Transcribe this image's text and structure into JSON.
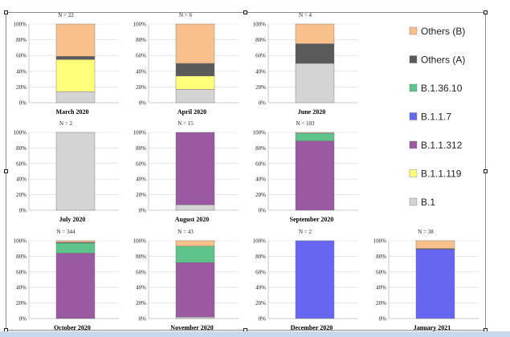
{
  "chart_data": {
    "type": "bar",
    "stacked": true,
    "ylim": [
      0,
      100
    ],
    "yticks": [
      "0%",
      "20%",
      "40%",
      "60%",
      "80%",
      "100%"
    ],
    "legend": {
      "placement": "right",
      "entries": [
        {
          "name": "Others (B)",
          "color": "#f9c08c"
        },
        {
          "name": "Others (A)",
          "color": "#5a5a5a"
        },
        {
          "name": "B.1.36.10",
          "color": "#5fc48b"
        },
        {
          "name": "B.1.1.7",
          "color": "#6666f0"
        },
        {
          "name": "B.1.1.312",
          "color": "#9a59a0"
        },
        {
          "name": "B.1.1.119",
          "color": "#ffff7a"
        },
        {
          "name": "B.1",
          "color": "#d4d4d4"
        }
      ]
    },
    "panels": [
      {
        "title": "March 2020",
        "n": "N = 22",
        "values": {
          "B.1": 14,
          "B.1.1.119": 41,
          "Others (A)": 4,
          "Others (B)": 41
        }
      },
      {
        "title": "April 2020",
        "n": "N = 6",
        "values": {
          "B.1": 17,
          "B.1.1.119": 17,
          "Others (A)": 16,
          "Others (B)": 50
        }
      },
      {
        "title": "June 2020",
        "n": "N = 4",
        "values": {
          "B.1": 50,
          "Others (A)": 25,
          "Others (B)": 25
        }
      },
      {
        "title": "July 2020",
        "n": "N = 2",
        "values": {
          "B.1": 100
        }
      },
      {
        "title": "August 2020",
        "n": "N = 15",
        "values": {
          "B.1": 7,
          "B.1.1.312": 93
        }
      },
      {
        "title": "September 2020",
        "n": "N = 103",
        "values": {
          "B.1.1.312": 89,
          "B.1.36.10": 10,
          "Others (B)": 1
        }
      },
      {
        "title": "October 2020",
        "n": "N = 344",
        "values": {
          "B.1.1.312": 84,
          "B.1.36.10": 13,
          "Others (A)": 1,
          "Others (B)": 2
        }
      },
      {
        "title": "November 2020",
        "n": "N = 43",
        "values": {
          "B.1": 2,
          "B.1.1.312": 70,
          "B.1.36.10": 21,
          "Others (B)": 7
        }
      },
      {
        "title": "December 2020",
        "n": "N = 2",
        "values": {
          "B.1.1.7": 100
        }
      },
      {
        "title": "January 2021",
        "n": "N = 38",
        "values": {
          "B.1.1.7": 89,
          "Others (A)": 1,
          "Others (B)": 10
        }
      }
    ]
  }
}
